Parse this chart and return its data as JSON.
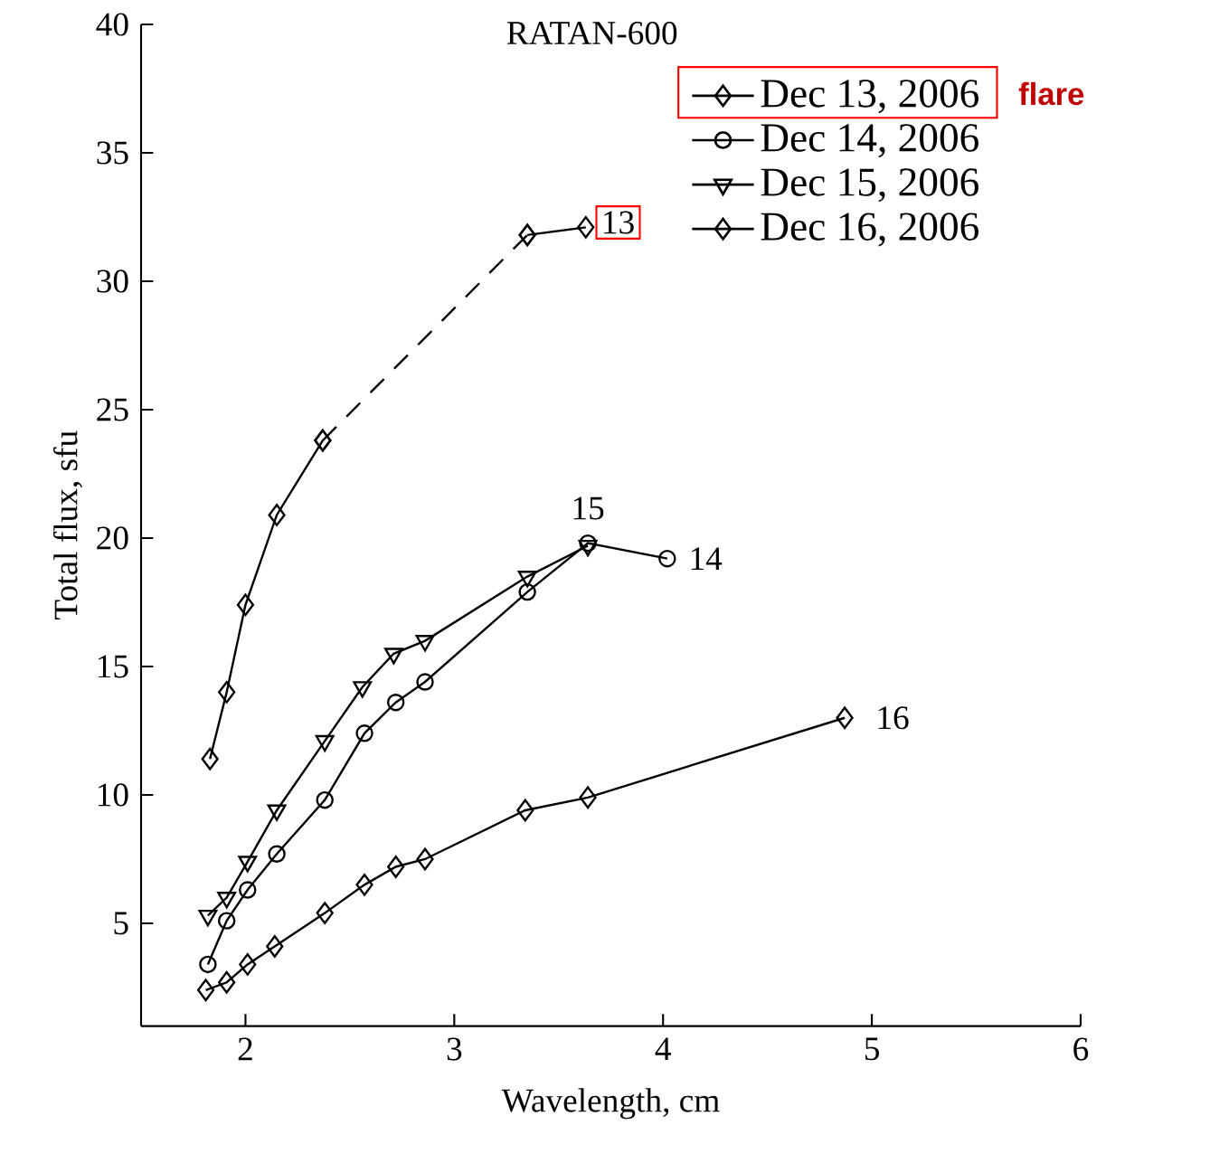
{
  "chart_data": {
    "type": "line",
    "title": "RATAN-600",
    "xlabel": "Wavelength, cm",
    "ylabel": "Total flux, sfu",
    "xlim": [
      1.5,
      6
    ],
    "ylim": [
      1,
      40
    ],
    "xticks": [
      2,
      3,
      4,
      5,
      6
    ],
    "yticks": [
      5,
      10,
      15,
      20,
      25,
      30,
      35,
      40
    ],
    "legend": "top right",
    "series": [
      {
        "name": "Dec 13, 2006",
        "color": "#000000",
        "marker": "diamond",
        "line_style": "solid",
        "x": [
          1.83,
          1.91,
          2.0,
          2.15,
          2.37
        ],
        "values": [
          11.4,
          14.0,
          17.4,
          20.9,
          23.8
        ]
      },
      {
        "name": "Dec 14, 2006",
        "color": "#000000",
        "marker": "circle",
        "line_style": "solid",
        "x": [
          1.82,
          1.91,
          2.01,
          2.15,
          2.38,
          2.57,
          2.72,
          2.86,
          3.35,
          3.64,
          4.02
        ],
        "values": [
          3.4,
          5.1,
          6.3,
          7.7,
          9.8,
          12.4,
          13.6,
          14.4,
          17.9,
          19.8,
          19.2
        ]
      },
      {
        "name": "Dec 15, 2006",
        "color": "#000000",
        "marker": "triangle",
        "line_style": "solid",
        "x": [
          1.82,
          1.91,
          2.01,
          2.15,
          2.38,
          2.56,
          2.71,
          2.86,
          3.35,
          3.64
        ],
        "values": [
          5.3,
          6.0,
          7.4,
          9.4,
          12.1,
          14.2,
          15.5,
          16.0,
          18.5,
          19.7
        ]
      },
      {
        "name": "Dec 16, 2006",
        "color": "#000000",
        "marker": "diamond",
        "line_style": "solid",
        "x": [
          1.81,
          1.91,
          2.01,
          2.14,
          2.38,
          2.57,
          2.72,
          2.86,
          3.34,
          3.64,
          4.87
        ],
        "values": [
          2.4,
          2.7,
          3.4,
          4.1,
          5.4,
          6.5,
          7.2,
          7.5,
          9.4,
          9.9,
          13.0
        ]
      },
      {
        "color": "#000000",
        "marker": "diamond",
        "line_style": "dashed",
        "x": [
          2.37,
          3.35
        ],
        "values": [
          23.8,
          31.8
        ]
      },
      {
        "color": "#000000",
        "marker": "diamond",
        "line_style": "solid",
        "x": [
          3.35,
          3.63
        ],
        "values": [
          31.8,
          32.1
        ]
      }
    ],
    "annotations": [
      {
        "text": "13",
        "x": 3.63,
        "y": 32.1
      },
      {
        "text": "15",
        "x": 3.64,
        "y": 19.7
      },
      {
        "text": "14",
        "x": 4.02,
        "y": 19.2
      },
      {
        "text": "16",
        "x": 4.87,
        "y": 13.0
      },
      "flare"
    ]
  }
}
